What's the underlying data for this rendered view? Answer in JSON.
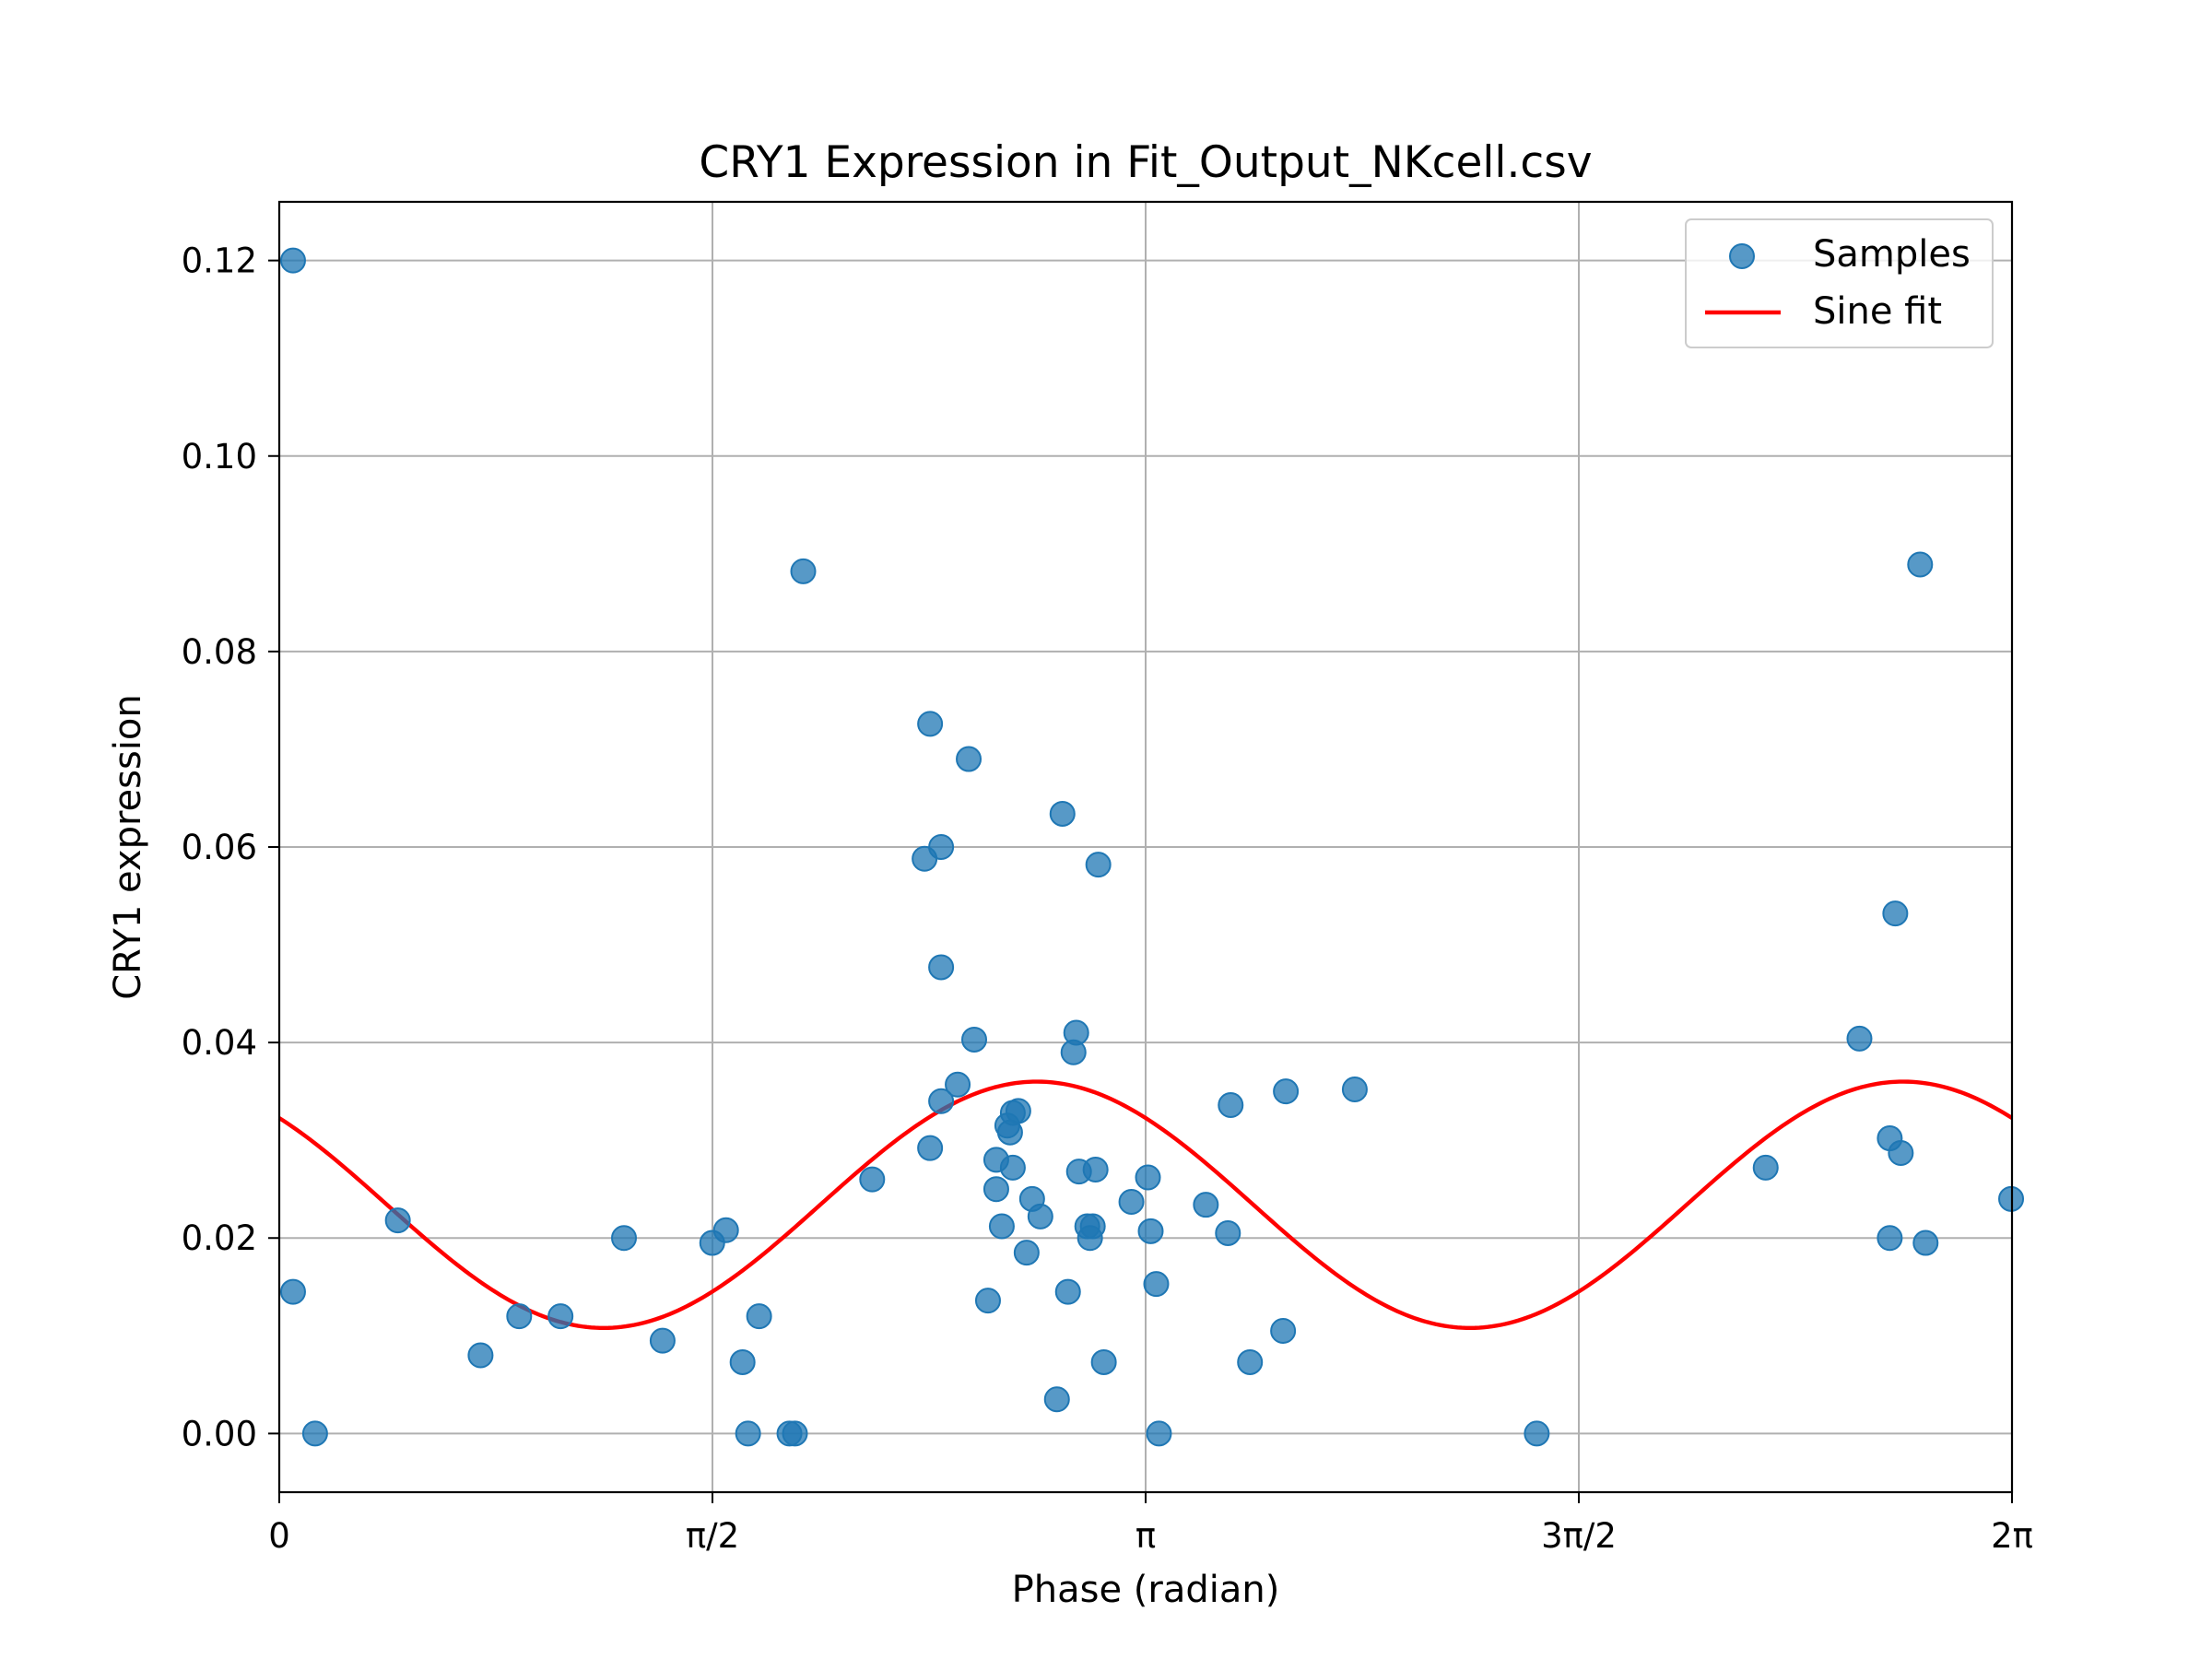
{
  "chart_data": {
    "type": "scatter",
    "title": "CRY1 Expression in Fit_Output_NKcell.csv",
    "xlabel": "Phase (radian)",
    "ylabel": "CRY1 expression",
    "xlim": [
      0,
      6.2832
    ],
    "ylim": [
      -0.006,
      0.126
    ],
    "x_ticks": [
      {
        "value": 0,
        "label": "0"
      },
      {
        "value": 1.5708,
        "label": "π/2"
      },
      {
        "value": 3.1416,
        "label": "π"
      },
      {
        "value": 4.7124,
        "label": "3π/2"
      },
      {
        "value": 6.2832,
        "label": "2π"
      }
    ],
    "y_ticks": [
      {
        "value": 0.0,
        "label": "0.00"
      },
      {
        "value": 0.02,
        "label": "0.02"
      },
      {
        "value": 0.04,
        "label": "0.04"
      },
      {
        "value": 0.06,
        "label": "0.06"
      },
      {
        "value": 0.08,
        "label": "0.08"
      },
      {
        "value": 0.1,
        "label": "0.10"
      },
      {
        "value": 0.12,
        "label": "0.12"
      }
    ],
    "grid": true,
    "legend": {
      "position": "top-right",
      "entries": [
        "Samples",
        "Sine fit"
      ]
    },
    "series": [
      {
        "name": "Samples",
        "kind": "scatter",
        "color": "#1f77b4",
        "points": [
          [
            0.05,
            0.12
          ],
          [
            0.05,
            0.0145
          ],
          [
            0.13,
            0.0
          ],
          [
            0.43,
            0.0218
          ],
          [
            0.73,
            0.008
          ],
          [
            0.87,
            0.012
          ],
          [
            1.02,
            0.012
          ],
          [
            1.25,
            0.02
          ],
          [
            1.39,
            0.0095
          ],
          [
            1.57,
            0.0195
          ],
          [
            1.62,
            0.0208
          ],
          [
            1.68,
            0.0073
          ],
          [
            1.7,
            0.0
          ],
          [
            1.74,
            0.012
          ],
          [
            1.85,
            0.0
          ],
          [
            1.87,
            0.0
          ],
          [
            1.9,
            0.0882
          ],
          [
            2.15,
            0.026
          ],
          [
            2.34,
            0.0588
          ],
          [
            2.36,
            0.0726
          ],
          [
            2.36,
            0.0292
          ],
          [
            2.4,
            0.06
          ],
          [
            2.4,
            0.0477
          ],
          [
            2.4,
            0.034
          ],
          [
            2.46,
            0.0357
          ],
          [
            2.5,
            0.069
          ],
          [
            2.52,
            0.0403
          ],
          [
            2.57,
            0.0136
          ],
          [
            2.6,
            0.028
          ],
          [
            2.6,
            0.025
          ],
          [
            2.62,
            0.0212
          ],
          [
            2.64,
            0.0315
          ],
          [
            2.65,
            0.0308
          ],
          [
            2.66,
            0.0272
          ],
          [
            2.66,
            0.0328
          ],
          [
            2.68,
            0.033
          ],
          [
            2.71,
            0.0185
          ],
          [
            2.73,
            0.024
          ],
          [
            2.76,
            0.0222
          ],
          [
            2.82,
            0.0035
          ],
          [
            2.84,
            0.0634
          ],
          [
            2.86,
            0.0145
          ],
          [
            2.88,
            0.039
          ],
          [
            2.89,
            0.041
          ],
          [
            2.9,
            0.0268
          ],
          [
            2.93,
            0.0212
          ],
          [
            2.94,
            0.02
          ],
          [
            2.95,
            0.0212
          ],
          [
            2.96,
            0.027
          ],
          [
            2.97,
            0.0582
          ],
          [
            2.99,
            0.0073
          ],
          [
            3.09,
            0.0237
          ],
          [
            3.15,
            0.0262
          ],
          [
            3.16,
            0.0207
          ],
          [
            3.18,
            0.0153
          ],
          [
            3.19,
            0.0
          ],
          [
            3.36,
            0.0234
          ],
          [
            3.44,
            0.0205
          ],
          [
            3.45,
            0.0336
          ],
          [
            3.52,
            0.0073
          ],
          [
            3.64,
            0.0105
          ],
          [
            3.65,
            0.035
          ],
          [
            3.9,
            0.0352
          ],
          [
            4.56,
            0.0
          ],
          [
            5.39,
            0.0272
          ],
          [
            5.73,
            0.0404
          ],
          [
            5.84,
            0.02
          ],
          [
            5.84,
            0.0302
          ],
          [
            5.86,
            0.0532
          ],
          [
            5.88,
            0.0287
          ],
          [
            5.95,
            0.0889
          ],
          [
            5.97,
            0.0195
          ],
          [
            6.28,
            0.024
          ]
        ]
      },
      {
        "name": "Sine fit",
        "kind": "line",
        "color": "#ff0000",
        "formula": "y = 0.0234 + 0.0126 * sin(2x + 2.36)",
        "amplitude": 0.0126,
        "offset": 0.0234,
        "frequency": 2,
        "phase": 2.36,
        "x_range": [
          0,
          6.2832
        ]
      }
    ]
  }
}
